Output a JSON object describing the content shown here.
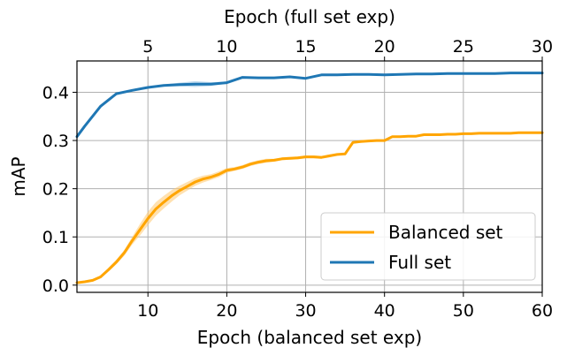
{
  "chart_data": {
    "type": "line",
    "xlabel": "Epoch (balanced set exp)",
    "ylabel": "mAP",
    "x2label": "Epoch (full set exp)",
    "xlim": [
      1,
      60
    ],
    "x2lim": [
      0.5,
      30
    ],
    "ylim": [
      -0.015,
      0.465
    ],
    "xticks": [
      10,
      20,
      30,
      40,
      50,
      60
    ],
    "x2ticks": [
      5,
      10,
      15,
      20,
      25,
      30
    ],
    "yticks": [
      0.0,
      0.1,
      0.2,
      0.3,
      0.4
    ],
    "ytick_labels": [
      "0.0",
      "0.1",
      "0.2",
      "0.3",
      "0.4"
    ],
    "grid": true,
    "legend_position": "lower-right",
    "series": [
      {
        "name": "Balanced set",
        "axis": "bottom",
        "color": "#ffa500",
        "band_color": "#ffc870",
        "x": [
          1,
          2,
          3,
          4,
          5,
          6,
          7,
          8,
          9,
          10,
          11,
          12,
          13,
          14,
          15,
          16,
          17,
          18,
          19,
          20,
          21,
          22,
          23,
          24,
          25,
          26,
          27,
          28,
          29,
          30,
          31,
          32,
          33,
          34,
          35,
          36,
          37,
          38,
          39,
          40,
          41,
          42,
          43,
          44,
          45,
          46,
          47,
          48,
          49,
          50,
          51,
          52,
          53,
          54,
          55,
          56,
          57,
          58,
          59,
          60
        ],
        "y": [
          0.005,
          0.007,
          0.01,
          0.017,
          0.032,
          0.048,
          0.067,
          0.092,
          0.115,
          0.138,
          0.158,
          0.172,
          0.185,
          0.196,
          0.205,
          0.214,
          0.22,
          0.224,
          0.23,
          0.238,
          0.241,
          0.245,
          0.251,
          0.255,
          0.258,
          0.259,
          0.262,
          0.263,
          0.264,
          0.266,
          0.266,
          0.265,
          0.268,
          0.271,
          0.272,
          0.296,
          0.298,
          0.299,
          0.3,
          0.3,
          0.308,
          0.308,
          0.309,
          0.309,
          0.312,
          0.312,
          0.312,
          0.313,
          0.313,
          0.314,
          0.314,
          0.315,
          0.315,
          0.315,
          0.315,
          0.315,
          0.316,
          0.316,
          0.316,
          0.316
        ],
        "band": [
          0.001,
          0.001,
          0.002,
          0.003,
          0.004,
          0.005,
          0.006,
          0.008,
          0.012,
          0.014,
          0.014,
          0.013,
          0.012,
          0.01,
          0.009,
          0.008,
          0.007,
          0.006,
          0.006,
          0.005,
          0.004,
          0.004,
          0.004,
          0.004,
          0.004,
          0.003,
          0.003,
          0.003,
          0.003,
          0.003,
          0.003,
          0.003,
          0.003,
          0.002,
          0.002,
          0.002,
          0.002,
          0.002,
          0.002,
          0.002,
          0.002,
          0.002,
          0.002,
          0.002,
          0.002,
          0.002,
          0.002,
          0.002,
          0.002,
          0.002,
          0.002,
          0.002,
          0.002,
          0.002,
          0.002,
          0.002,
          0.002,
          0.002,
          0.002,
          0.002
        ]
      },
      {
        "name": "Full set",
        "axis": "top",
        "color": "#1f77b4",
        "band_color": "#8fbfe0",
        "x": [
          0.5,
          1,
          2,
          3,
          4,
          5,
          6,
          7,
          8,
          9,
          10,
          11,
          12,
          13,
          14,
          15,
          16,
          17,
          18,
          19,
          20,
          21,
          22,
          23,
          24,
          25,
          26,
          27,
          28,
          29,
          30
        ],
        "y": [
          0.308,
          0.33,
          0.371,
          0.397,
          0.404,
          0.41,
          0.414,
          0.416,
          0.417,
          0.417,
          0.42,
          0.431,
          0.43,
          0.43,
          0.432,
          0.429,
          0.436,
          0.436,
          0.437,
          0.437,
          0.436,
          0.437,
          0.438,
          0.438,
          0.439,
          0.439,
          0.439,
          0.439,
          0.44,
          0.44,
          0.44
        ],
        "band": [
          0.003,
          0.003,
          0.003,
          0.002,
          0.002,
          0.002,
          0.002,
          0.004,
          0.006,
          0.004,
          0.002,
          0.002,
          0.002,
          0.002,
          0.002,
          0.002,
          0.002,
          0.002,
          0.001,
          0.001,
          0.001,
          0.001,
          0.001,
          0.001,
          0.001,
          0.001,
          0.001,
          0.001,
          0.001,
          0.001,
          0.001
        ]
      }
    ]
  }
}
